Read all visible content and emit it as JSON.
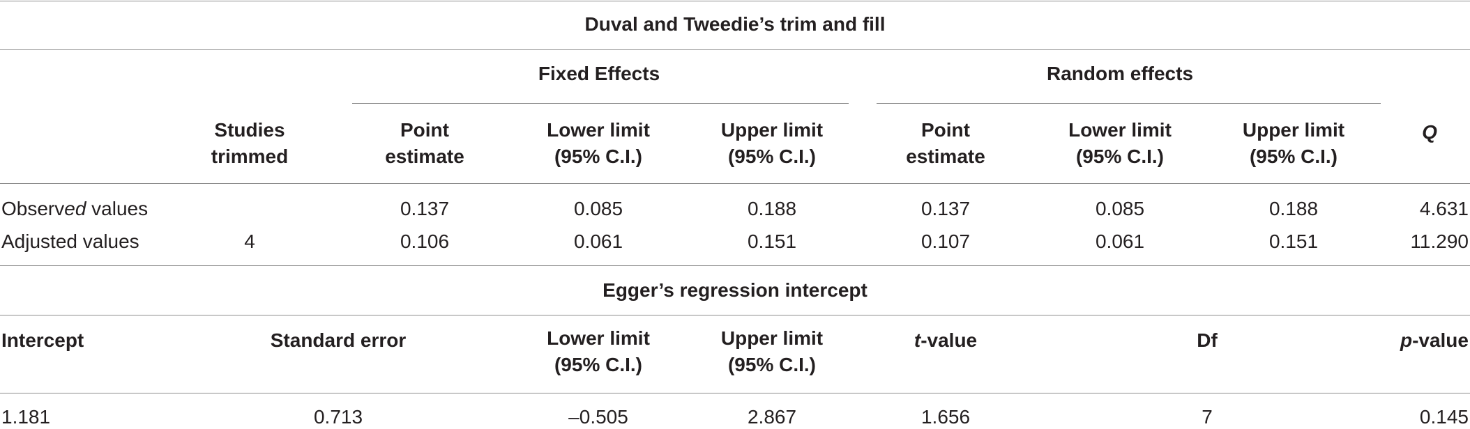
{
  "trim_fill": {
    "title": "Duval and Tweedie’s trim and fill",
    "group_fixed": "Fixed Effects",
    "group_random": "Random effects",
    "headers": {
      "studies_trimmed": [
        "Studies",
        "trimmed"
      ],
      "point_estimate": [
        "Point",
        "estimate"
      ],
      "lower_limit": [
        "Lower limit",
        "(95% C.I.)"
      ],
      "upper_limit": [
        "Upper limit",
        "(95% C.I.)"
      ],
      "q": "Q"
    },
    "rows": [
      {
        "label_pre": "Observ",
        "label_italic": "ed",
        "label_post": " values",
        "studies_trimmed": "",
        "fixed": [
          "0.137",
          "0.085",
          "0.188"
        ],
        "random": [
          "0.137",
          "0.085",
          "0.188"
        ],
        "q": "4.631"
      },
      {
        "label_pre": "Adjusted values",
        "label_italic": "",
        "label_post": "",
        "studies_trimmed": "4",
        "fixed": [
          "0.106",
          "0.061",
          "0.151"
        ],
        "random": [
          "0.107",
          "0.061",
          "0.151"
        ],
        "q": "11.290"
      }
    ]
  },
  "egger": {
    "title": "Egger’s regression intercept",
    "headers": {
      "intercept": "Intercept",
      "standard_error": "Standard error",
      "lower_limit": [
        "Lower limit",
        "(95% C.I.)"
      ],
      "upper_limit": [
        "Upper limit",
        "(95% C.I.)"
      ],
      "t_value_italic": "t",
      "t_value_rest": "-value",
      "df": "Df",
      "p_value_italic": "p",
      "p_value_rest": "-value"
    },
    "row": {
      "intercept": "1.181",
      "standard_error": "0.713",
      "lower_limit": "–0.505",
      "upper_limit": "2.867",
      "t_value": "1.656",
      "df": "7",
      "p_value": "0.145"
    }
  }
}
